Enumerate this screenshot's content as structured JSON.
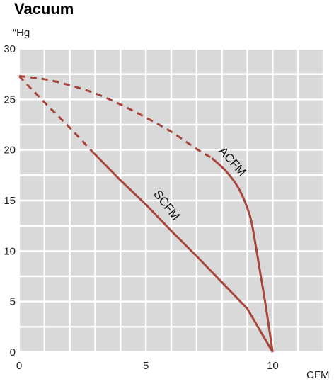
{
  "chart_data": {
    "type": "line",
    "title": "Vacuum",
    "ylabel": "“Hg",
    "xlabel": "CFM",
    "xlim": [
      0,
      12
    ],
    "ylim": [
      0,
      30
    ],
    "x_ticks": [
      0,
      5,
      10
    ],
    "y_ticks": [
      0,
      5,
      10,
      15,
      20,
      25,
      30
    ],
    "grid": true,
    "plot_background": "#d9d9d9",
    "grid_color": "#ffffff",
    "series_color": "#a8463c",
    "series": [
      {
        "name": "ACFM",
        "dashed_segment": [
          [
            0,
            27.3
          ],
          [
            1,
            27.0
          ],
          [
            2,
            26.4
          ],
          [
            3,
            25.6
          ],
          [
            4,
            24.5
          ],
          [
            5,
            23.2
          ],
          [
            6,
            21.8
          ],
          [
            7,
            20.1
          ],
          [
            7.6,
            19.2
          ]
        ],
        "solid_segment": [
          [
            7.6,
            19.2
          ],
          [
            8.2,
            17.8
          ],
          [
            8.7,
            16.0
          ],
          [
            9.1,
            13.5
          ],
          [
            9.3,
            11.0
          ],
          [
            9.5,
            8.0
          ],
          [
            9.7,
            5.0
          ],
          [
            9.85,
            2.5
          ],
          [
            10,
            0
          ]
        ]
      },
      {
        "name": "SCFM",
        "dashed_segment": [
          [
            0,
            27.3
          ],
          [
            0.5,
            26.0
          ],
          [
            1.2,
            24.2
          ],
          [
            2,
            22.2
          ],
          [
            2.9,
            19.8
          ]
        ],
        "solid_segment": [
          [
            2.9,
            19.8
          ],
          [
            4,
            17.0
          ],
          [
            5,
            14.6
          ],
          [
            6,
            12.0
          ],
          [
            7,
            9.5
          ],
          [
            8,
            6.9
          ],
          [
            9,
            4.3
          ],
          [
            10,
            0
          ]
        ]
      }
    ],
    "labels": {
      "acfm": {
        "text": "ACFM",
        "x": 8.3,
        "y": 18.6,
        "angle": 48
      },
      "scfm": {
        "text": "SCFM",
        "x": 5.7,
        "y": 14.3,
        "angle": 52
      }
    }
  }
}
